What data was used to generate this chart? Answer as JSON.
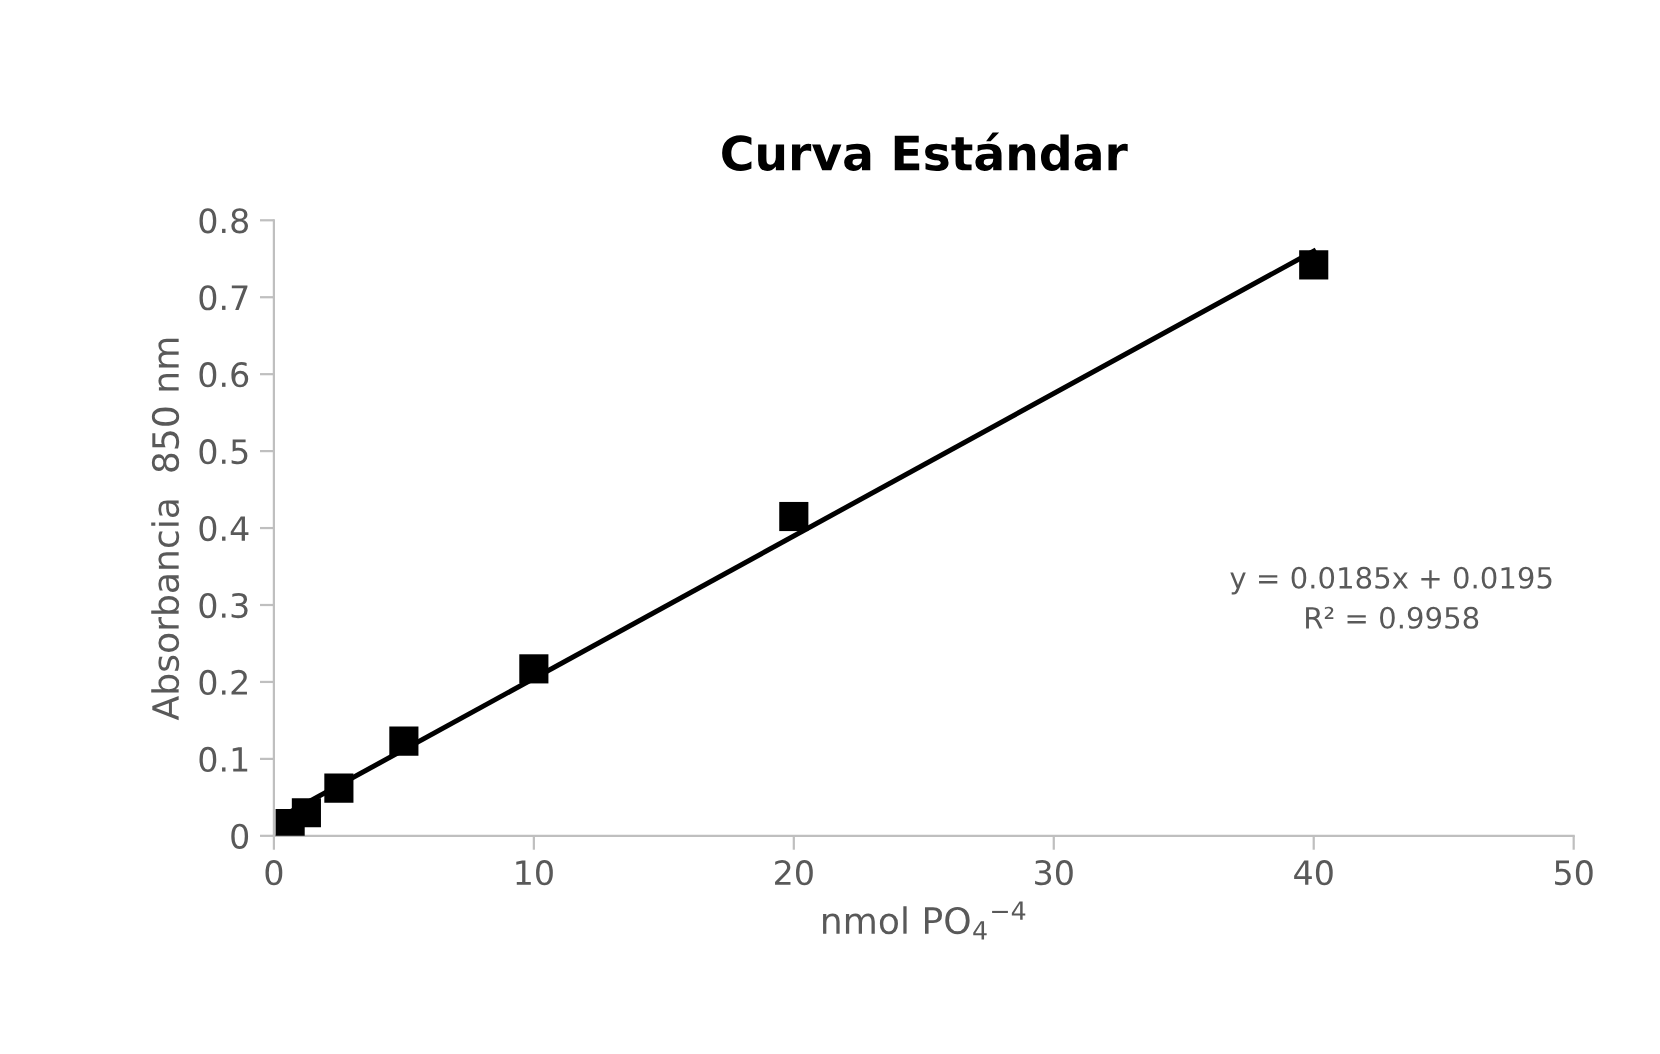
{
  "chart_data": {
    "type": "scatter",
    "title": "Curva Estándar",
    "xlabel": "nmol PO$_{4}$$^{−4}$",
    "ylabel": "Absorbancia  850 nm",
    "series": [
      {
        "color": "#000000",
        "marker": "square",
        "x": [
          0.625,
          1.25,
          2.5,
          5,
          10,
          20,
          40
        ],
        "values": [
          0.016,
          0.03,
          0.062,
          0.123,
          0.217,
          0.415,
          0.742
        ]
      },
      {
        "type": "line",
        "color": "#000000",
        "marker": "none",
        "line_style": "solid",
        "x": [
          0.625,
          40
        ],
        "values": [
          0.031,
          0.76
        ]
      }
    ],
    "annotations": [
      "y = 0.0185x + 0.0195",
      "R² = 0.9958"
    ],
    "xlim": [
      0,
      50
    ],
    "xticks": [
      0,
      10,
      20,
      30,
      40,
      50
    ],
    "ylim": [
      0,
      0.8
    ],
    "yticks": [
      0,
      0.1,
      0.2,
      0.3,
      0.4,
      0.5,
      0.6,
      0.7,
      0.8
    ],
    "grid": false,
    "legend": false
  }
}
